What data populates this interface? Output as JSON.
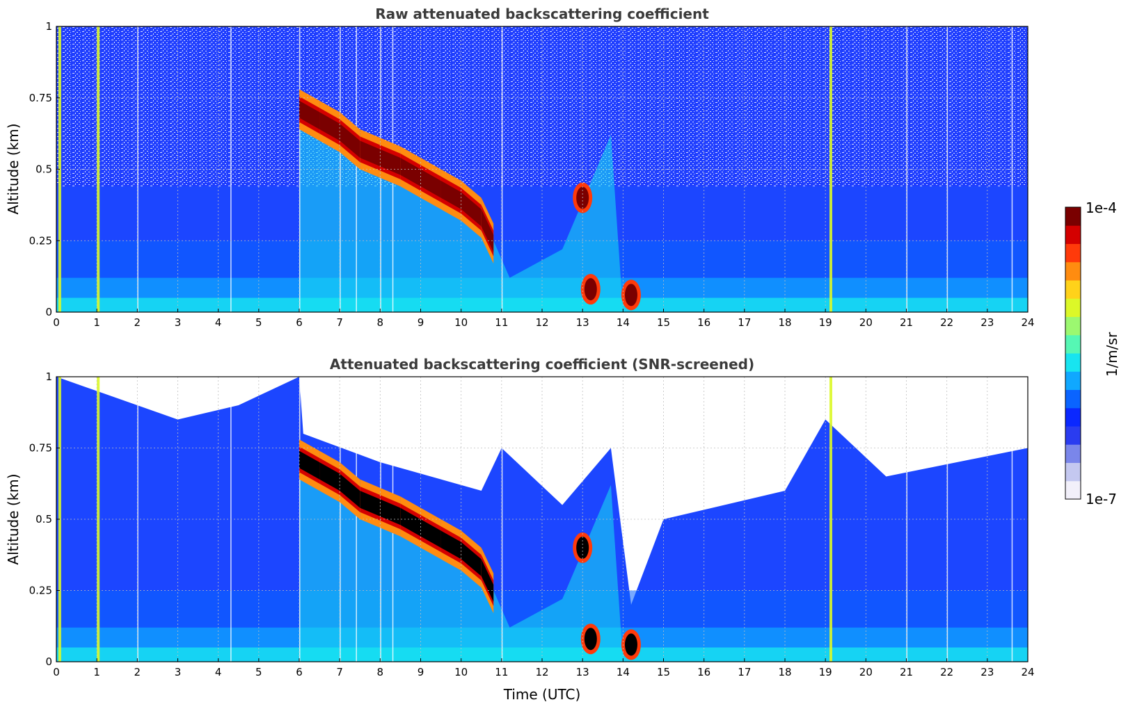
{
  "colors": {
    "colormap": [
      "#f2f0fa",
      "#c4c8f0",
      "#7a86ea",
      "#2a3cf0",
      "#0a28ff",
      "#0a64ff",
      "#10a8ff",
      "#18e4f0",
      "#56f7b4",
      "#9cf870",
      "#dcf828",
      "#ffd21a",
      "#ff8c10",
      "#ff3a0a",
      "#d40000",
      "#7a0000"
    ],
    "saturated_screened": "#000000",
    "grid": "#bfbfbf"
  },
  "chart_data": [
    {
      "type": "heatmap",
      "title": "Raw attenuated backscattering coefficient",
      "xlabel": "",
      "ylabel": "Altitude (km)",
      "xlim": [
        0,
        24
      ],
      "ylim": [
        0,
        1
      ],
      "xticks": [
        "0",
        "1",
        "2",
        "3",
        "4",
        "5",
        "6",
        "7",
        "8",
        "9",
        "10",
        "11",
        "12",
        "13",
        "14",
        "15",
        "16",
        "17",
        "18",
        "19",
        "20",
        "21",
        "22",
        "23",
        "24"
      ],
      "yticks": [
        "0",
        "0.25",
        "0.5",
        "0.75",
        "1"
      ],
      "grid": true,
      "cloud_layer": {
        "time": [
          6.0,
          6.5,
          7.0,
          7.5,
          8.0,
          8.5,
          9.0,
          9.5,
          10.0,
          10.5,
          10.8
        ],
        "altitude_km": [
          0.7,
          0.66,
          0.62,
          0.56,
          0.53,
          0.5,
          0.46,
          0.42,
          0.38,
          0.32,
          0.23
        ]
      },
      "low_cloud_patches": [
        {
          "time": 13.2,
          "altitude_km": 0.08
        },
        {
          "time": 14.2,
          "altitude_km": 0.06
        },
        {
          "time": 13.0,
          "altitude_km": 0.4
        }
      ]
    },
    {
      "type": "heatmap",
      "title": "Attenuated backscattering coefficient (SNR-screened)",
      "xlabel": "Time (UTC)",
      "ylabel": "Altitude (km)",
      "xlim": [
        0,
        24
      ],
      "ylim": [
        0,
        1
      ],
      "xticks": [
        "0",
        "1",
        "2",
        "3",
        "4",
        "5",
        "6",
        "7",
        "8",
        "9",
        "10",
        "11",
        "12",
        "13",
        "14",
        "15",
        "16",
        "17",
        "18",
        "19",
        "20",
        "21",
        "22",
        "23",
        "24"
      ],
      "yticks": [
        "0",
        "0.25",
        "0.5",
        "0.75",
        "1"
      ],
      "grid": true,
      "cloud_layer": {
        "time": [
          6.0,
          6.5,
          7.0,
          7.5,
          8.0,
          8.5,
          9.0,
          9.5,
          10.0,
          10.5,
          10.8
        ],
        "altitude_km": [
          0.7,
          0.66,
          0.62,
          0.56,
          0.53,
          0.5,
          0.46,
          0.42,
          0.38,
          0.32,
          0.23
        ]
      },
      "screened_top_km": [
        {
          "time": 0,
          "altitude_km": 1.0
        },
        {
          "time": 1,
          "altitude_km": 0.95
        },
        {
          "time": 3,
          "altitude_km": 0.85
        },
        {
          "time": 4.5,
          "altitude_km": 0.9
        },
        {
          "time": 6.0,
          "altitude_km": 1.0
        },
        {
          "time": 6.1,
          "altitude_km": 0.8
        },
        {
          "time": 8,
          "altitude_km": 0.7
        },
        {
          "time": 10.5,
          "altitude_km": 0.6
        },
        {
          "time": 11,
          "altitude_km": 0.75
        },
        {
          "time": 12.5,
          "altitude_km": 0.55
        },
        {
          "time": 13.7,
          "altitude_km": 0.75
        },
        {
          "time": 14.2,
          "altitude_km": 0.2
        },
        {
          "time": 15,
          "altitude_km": 0.5
        },
        {
          "time": 18,
          "altitude_km": 0.6
        },
        {
          "time": 19,
          "altitude_km": 0.85
        },
        {
          "time": 20.5,
          "altitude_km": 0.65
        },
        {
          "time": 24,
          "altitude_km": 0.75
        }
      ]
    }
  ],
  "colorbar": {
    "max_label": "1e-4",
    "min_label": "1e-7",
    "unit_label": "1/m/sr",
    "scale": "log"
  }
}
